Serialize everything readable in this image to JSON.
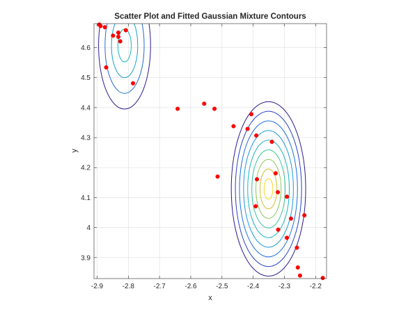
{
  "chart_data": {
    "type": "scatter",
    "title": "Scatter Plot and Fitted Gaussian Mixture Contours",
    "xlabel": "x",
    "ylabel": "y",
    "xlim": [
      -2.91,
      -2.165
    ],
    "ylim": [
      3.83,
      4.68
    ],
    "xticks": [
      -2.9,
      -2.8,
      -2.7,
      -2.6,
      -2.5,
      -2.4,
      -2.3,
      -2.2
    ],
    "xtick_labels": [
      "-2.9",
      "-2.8",
      "-2.7",
      "-2.6",
      "-2.5",
      "-2.4",
      "-2.3",
      "-2.2"
    ],
    "yticks": [
      3.9,
      4.0,
      4.1,
      4.2,
      4.3,
      4.4,
      4.5,
      4.6
    ],
    "ytick_labels": [
      "3.9",
      "4",
      "4.1",
      "4.2",
      "4.3",
      "4.4",
      "4.5",
      "4.6"
    ],
    "grid": true,
    "point_color": "#ff0000",
    "points": [
      {
        "x": -2.893,
        "y": 4.677
      },
      {
        "x": -2.889,
        "y": 4.672
      },
      {
        "x": -2.875,
        "y": 4.668
      },
      {
        "x": -2.849,
        "y": 4.64
      },
      {
        "x": -2.832,
        "y": 4.65
      },
      {
        "x": -2.832,
        "y": 4.636
      },
      {
        "x": -2.826,
        "y": 4.621
      },
      {
        "x": -2.808,
        "y": 4.658
      },
      {
        "x": -2.871,
        "y": 4.534
      },
      {
        "x": -2.785,
        "y": 4.481
      },
      {
        "x": -2.642,
        "y": 4.396
      },
      {
        "x": -2.557,
        "y": 4.413
      },
      {
        "x": -2.524,
        "y": 4.396
      },
      {
        "x": -2.514,
        "y": 4.17
      },
      {
        "x": -2.463,
        "y": 4.338
      },
      {
        "x": -2.418,
        "y": 4.329
      },
      {
        "x": -2.406,
        "y": 4.378
      },
      {
        "x": -2.39,
        "y": 4.307
      },
      {
        "x": -2.34,
        "y": 4.286
      },
      {
        "x": -2.388,
        "y": 4.161
      },
      {
        "x": -2.328,
        "y": 4.181
      },
      {
        "x": -2.321,
        "y": 4.118
      },
      {
        "x": -2.392,
        "y": 4.071
      },
      {
        "x": -2.292,
        "y": 4.103
      },
      {
        "x": -2.279,
        "y": 4.03
      },
      {
        "x": -2.236,
        "y": 4.041
      },
      {
        "x": -2.32,
        "y": 3.993
      },
      {
        "x": -2.292,
        "y": 3.966
      },
      {
        "x": -2.26,
        "y": 3.933
      },
      {
        "x": -2.257,
        "y": 3.867
      },
      {
        "x": -2.25,
        "y": 3.84
      },
      {
        "x": -2.177,
        "y": 3.832
      }
    ],
    "components": [
      {
        "mean_x": -2.812,
        "mean_y": 4.607,
        "sd_x": 0.0393,
        "sd_y": 0.1,
        "contour_colors": [
          "#2a1a8c",
          "#1f6bd0",
          "#17a0c7",
          "#19b8b8"
        ]
      },
      {
        "mean_x": -2.351,
        "mean_y": 4.129,
        "sd_x": 0.0455,
        "sd_y": 0.111,
        "contour_colors": [
          "#2a1a8c",
          "#2641c4",
          "#1b70de",
          "#1a98d8",
          "#19b4c0",
          "#3ac49a",
          "#8dc95d",
          "#cfbd2e",
          "#f8d71f"
        ]
      }
    ]
  }
}
